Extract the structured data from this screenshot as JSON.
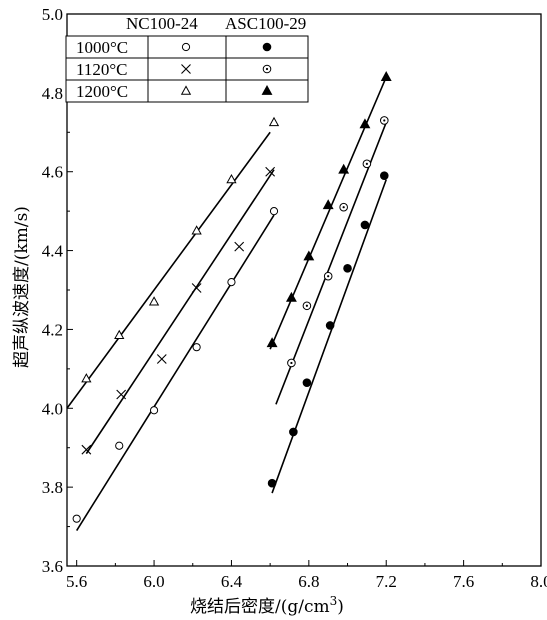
{
  "chart_data": {
    "type": "scatter",
    "xlabel": "烧结后密度/(g/cm³)",
    "xlabel_main": "烧结后密度/(g/cm",
    "xlabel_sup": "3",
    "xlabel_tail": ")",
    "ylabel": "超声纵波速度/(km/s)",
    "xlim": [
      5.55,
      8.0
    ],
    "ylim": [
      3.6,
      5.0
    ],
    "xticks": [
      5.6,
      6.0,
      6.4,
      6.8,
      7.2,
      7.6,
      8.0
    ],
    "xtick_labels": [
      "5.6",
      "6.0",
      "6.4",
      "6.8",
      "7.2",
      "7.6",
      "8.0"
    ],
    "yticks": [
      3.6,
      3.8,
      4.0,
      4.2,
      4.4,
      4.6,
      4.8,
      5.0
    ],
    "ytick_labels": [
      "3.6",
      "3.8",
      "4.0",
      "4.2",
      "4.4",
      "4.6",
      "4.8",
      "5.0"
    ],
    "legend": {
      "placement": "top-left",
      "columns": [
        "NC100-24",
        "ASC100-29"
      ],
      "rows": [
        "1000°C",
        "1120°C",
        "1200°C"
      ]
    },
    "series": [
      {
        "name": "NC100-24 1000°C",
        "marker": "open-circle",
        "points": [
          [
            5.6,
            3.72
          ],
          [
            5.82,
            3.905
          ],
          [
            6.0,
            3.995
          ],
          [
            6.22,
            4.155
          ],
          [
            6.4,
            4.32
          ],
          [
            6.62,
            4.5
          ]
        ],
        "fit": [
          [
            5.6,
            3.69
          ],
          [
            6.62,
            4.49
          ]
        ]
      },
      {
        "name": "NC100-24 1120°C",
        "marker": "cross",
        "points": [
          [
            5.65,
            3.895
          ],
          [
            5.83,
            4.035
          ],
          [
            6.04,
            4.125
          ],
          [
            6.22,
            4.305
          ],
          [
            6.44,
            4.41
          ],
          [
            6.6,
            4.6
          ]
        ],
        "fit": [
          [
            5.65,
            3.885
          ],
          [
            6.62,
            4.605
          ]
        ]
      },
      {
        "name": "NC100-24 1200°C",
        "marker": "open-triangle",
        "points": [
          [
            5.65,
            4.075
          ],
          [
            5.82,
            4.185
          ],
          [
            6.0,
            4.27
          ],
          [
            6.22,
            4.45
          ],
          [
            6.4,
            4.58
          ],
          [
            6.62,
            4.725
          ]
        ],
        "fit": [
          [
            5.55,
            4.0
          ],
          [
            6.6,
            4.7
          ]
        ]
      },
      {
        "name": "ASC100-29 1000°C",
        "marker": "filled-circle",
        "points": [
          [
            6.61,
            3.81
          ],
          [
            6.72,
            3.94
          ],
          [
            6.79,
            4.065
          ],
          [
            6.91,
            4.21
          ],
          [
            7.0,
            4.355
          ],
          [
            7.09,
            4.465
          ],
          [
            7.19,
            4.59
          ]
        ],
        "fit": [
          [
            6.61,
            3.785
          ],
          [
            7.2,
            4.58
          ]
        ]
      },
      {
        "name": "ASC100-29 1120°C",
        "marker": "dotted-circle",
        "points": [
          [
            6.71,
            4.115
          ],
          [
            6.79,
            4.26
          ],
          [
            6.9,
            4.335
          ],
          [
            6.98,
            4.51
          ],
          [
            7.1,
            4.62
          ],
          [
            7.19,
            4.73
          ]
        ],
        "fit": [
          [
            6.63,
            4.01
          ],
          [
            7.2,
            4.725
          ]
        ]
      },
      {
        "name": "ASC100-29 1200°C",
        "marker": "filled-triangle",
        "points": [
          [
            6.61,
            4.165
          ],
          [
            6.71,
            4.28
          ],
          [
            6.8,
            4.385
          ],
          [
            6.9,
            4.515
          ],
          [
            6.98,
            4.605
          ],
          [
            7.09,
            4.72
          ],
          [
            7.2,
            4.84
          ]
        ],
        "fit": [
          [
            6.6,
            4.15
          ],
          [
            7.2,
            4.84
          ]
        ]
      }
    ]
  }
}
